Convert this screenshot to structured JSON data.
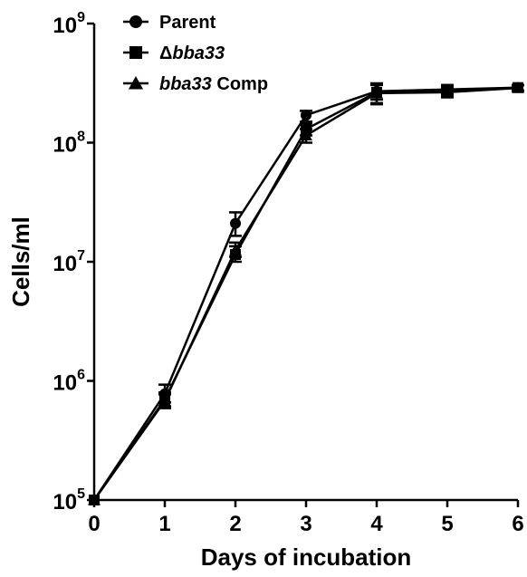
{
  "chart_data": {
    "type": "line",
    "title": "",
    "xlabel": "Days of incubation",
    "ylabel": "Cells/ml",
    "xlim": [
      0,
      6
    ],
    "ylim": [
      100000,
      1000000000
    ],
    "yscale": "log",
    "x": [
      0,
      1,
      2,
      3,
      4,
      5,
      6
    ],
    "x_ticks": [
      "0",
      "1",
      "2",
      "3",
      "4",
      "5",
      "6"
    ],
    "y_ticks": [
      {
        "value": 100000,
        "base": "10",
        "exp": "5"
      },
      {
        "value": 1000000,
        "base": "10",
        "exp": "6"
      },
      {
        "value": 10000000,
        "base": "10",
        "exp": "7"
      },
      {
        "value": 100000000,
        "base": "10",
        "exp": "8"
      },
      {
        "value": 1000000000,
        "base": "10",
        "exp": "9"
      }
    ],
    "legend_position": "top-left",
    "grid": false,
    "series": [
      {
        "name": "Parent",
        "marker": "circle",
        "values": [
          100000,
          780000,
          21000000,
          170000000,
          270000000,
          280000000,
          290000000
        ],
        "err_low": [
          100000,
          660000,
          16500000,
          150000000,
          230000000,
          255000000,
          272000000
        ],
        "err_high": [
          100000,
          930000,
          26000000,
          185000000,
          315000000,
          305000000,
          305000000
        ]
      },
      {
        "name": "Δbba33",
        "name_prefix": "Δ",
        "name_italic": "bba33",
        "name_suffix": "",
        "marker": "square",
        "values": [
          100000,
          700000,
          11500000,
          130000000,
          265000000,
          270000000,
          290000000
        ],
        "err_low": [
          100000,
          610000,
          10000000,
          115000000,
          215000000,
          245000000,
          275000000
        ],
        "err_high": [
          100000,
          800000,
          13500000,
          145000000,
          310000000,
          295000000,
          305000000
        ]
      },
      {
        "name": "bba33 Comp",
        "name_prefix": "",
        "name_italic": "bba33",
        "name_suffix": " Comp",
        "marker": "triangle",
        "values": [
          100000,
          680000,
          12500000,
          115000000,
          260000000,
          265000000,
          288000000
        ],
        "err_low": [
          100000,
          590000,
          11000000,
          100000000,
          210000000,
          240000000,
          272000000
        ],
        "err_high": [
          100000,
          770000,
          14500000,
          130000000,
          305000000,
          290000000,
          303000000
        ]
      }
    ]
  }
}
